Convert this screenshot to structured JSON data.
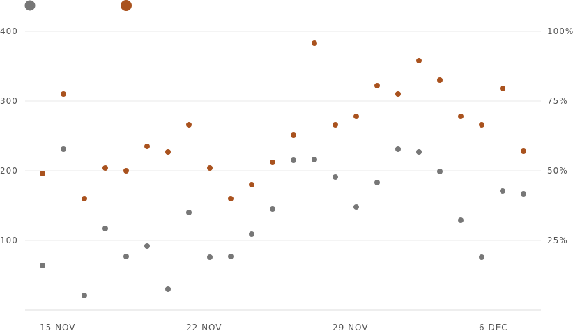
{
  "chart_data": {
    "type": "scatter",
    "x_dates": [
      "2023-11-15",
      "2023-11-16",
      "2023-11-17",
      "2023-11-18",
      "2023-11-19",
      "2023-11-20",
      "2023-11-21",
      "2023-11-22",
      "2023-11-23",
      "2023-11-24",
      "2023-11-25",
      "2023-11-26",
      "2023-11-27",
      "2023-11-28",
      "2023-11-29",
      "2023-11-30",
      "2023-12-01",
      "2023-12-02",
      "2023-12-03",
      "2023-12-04",
      "2023-12-05",
      "2023-12-06",
      "2023-12-07",
      "2023-12-08"
    ],
    "x_tick_labels": [
      "15 NOV",
      "22 NOV",
      "29 NOV",
      "6 DEC"
    ],
    "y_left": {
      "ticks": [
        100,
        200,
        300,
        400
      ],
      "range": [
        0,
        400
      ]
    },
    "y_right": {
      "ticks": [
        "25%",
        "50%",
        "75%",
        "100%"
      ],
      "range": [
        0,
        100
      ]
    },
    "series": [
      {
        "color": "#777777",
        "axis": "left",
        "legend_marker": "small",
        "values": [
          64,
          231,
          21,
          117,
          77,
          92,
          30,
          140,
          76,
          77,
          109,
          145,
          215,
          216,
          191,
          148,
          183,
          231,
          227,
          199,
          129,
          76,
          171,
          167
        ]
      },
      {
        "color": "#a9521e",
        "axis": "right",
        "legend_marker": "large",
        "values": [
          49,
          77.5,
          40,
          51,
          50,
          58.75,
          56.75,
          66.5,
          51,
          40,
          45,
          53,
          62.75,
          95.75,
          66.5,
          69.5,
          80.5,
          77.5,
          89.5,
          82.5,
          69.5,
          66.5,
          79.5,
          57
        ]
      }
    ],
    "grid": true,
    "legend_placement": "top-left"
  }
}
